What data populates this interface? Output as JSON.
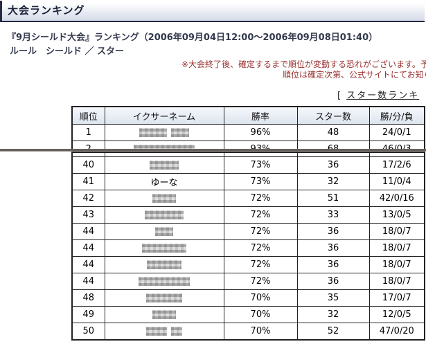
{
  "header": {
    "title": "大会ランキング"
  },
  "tournament": {
    "subtitle": "『9月シールド大会』ランキング（2006年09月04日12:00～2006年09月08日01:40）",
    "rule": "ルール　シールド ／ スター"
  },
  "notice": {
    "line1": "※大会終了後、確定するまで順位が変動する恐れがございます。予め",
    "line2": "順位は確定次第、公式サイトにてお知ら"
  },
  "star_link": {
    "prefix": "[ ",
    "label": "スター数ランキ"
  },
  "ranking_table": {
    "headers": [
      "順位",
      "イクサーネーム",
      "勝率",
      "スター数",
      "勝/分/負"
    ],
    "top_rows": [
      {
        "rank": "1",
        "name": "",
        "mask": [
          40,
          26
        ],
        "win_rate": "96%",
        "stars": "48",
        "record": "24/0/1"
      },
      {
        "rank": "2",
        "name": "",
        "mask": [
          88
        ],
        "win_rate": "93%",
        "stars": "68",
        "record": "46/0/3"
      }
    ],
    "lower_rows": [
      {
        "rank": "40",
        "name": "",
        "mask": [
          42
        ],
        "win_rate": "73%",
        "stars": "36",
        "record": "17/2/6"
      },
      {
        "rank": "41",
        "name": "ゆーな",
        "mask": [],
        "win_rate": "73%",
        "stars": "32",
        "record": "11/0/4"
      },
      {
        "rank": "42",
        "name": "",
        "mask": [
          34
        ],
        "win_rate": "72%",
        "stars": "51",
        "record": "42/0/16"
      },
      {
        "rank": "43",
        "name": "",
        "mask": [
          56
        ],
        "win_rate": "72%",
        "stars": "33",
        "record": "13/0/5"
      },
      {
        "rank": "44",
        "name": "",
        "mask": [
          26
        ],
        "win_rate": "72%",
        "stars": "36",
        "record": "18/0/7"
      },
      {
        "rank": "44",
        "name": "",
        "mask": [
          64
        ],
        "win_rate": "72%",
        "stars": "36",
        "record": "18/0/7"
      },
      {
        "rank": "44",
        "name": "",
        "mask": [
          50
        ],
        "win_rate": "72%",
        "stars": "36",
        "record": "18/0/7"
      },
      {
        "rank": "44",
        "name": "",
        "mask": [
          74
        ],
        "win_rate": "72%",
        "stars": "36",
        "record": "18/0/7"
      },
      {
        "rank": "48",
        "name": "",
        "mask": [
          52
        ],
        "win_rate": "70%",
        "stars": "35",
        "record": "17/0/7"
      },
      {
        "rank": "49",
        "name": "",
        "mask": [
          34
        ],
        "win_rate": "70%",
        "stars": "32",
        "record": "12/0/5"
      },
      {
        "rank": "50",
        "name": "",
        "mask": [
          30,
          16
        ],
        "win_rate": "70%",
        "stars": "52",
        "record": "47/0/20"
      }
    ]
  },
  "colors": {
    "accent_dark": "#272a45",
    "titlebar_gradient_bottom": "#d6dbe9",
    "title_text": "#1a2138",
    "subtitle_text": "#333a4d",
    "notice_text": "#993333",
    "table_border": "#222222",
    "table_header_bg_top": "#f6f9fc",
    "table_header_bg_bottom": "#dde4ef",
    "splice_line": "#675f5b"
  }
}
